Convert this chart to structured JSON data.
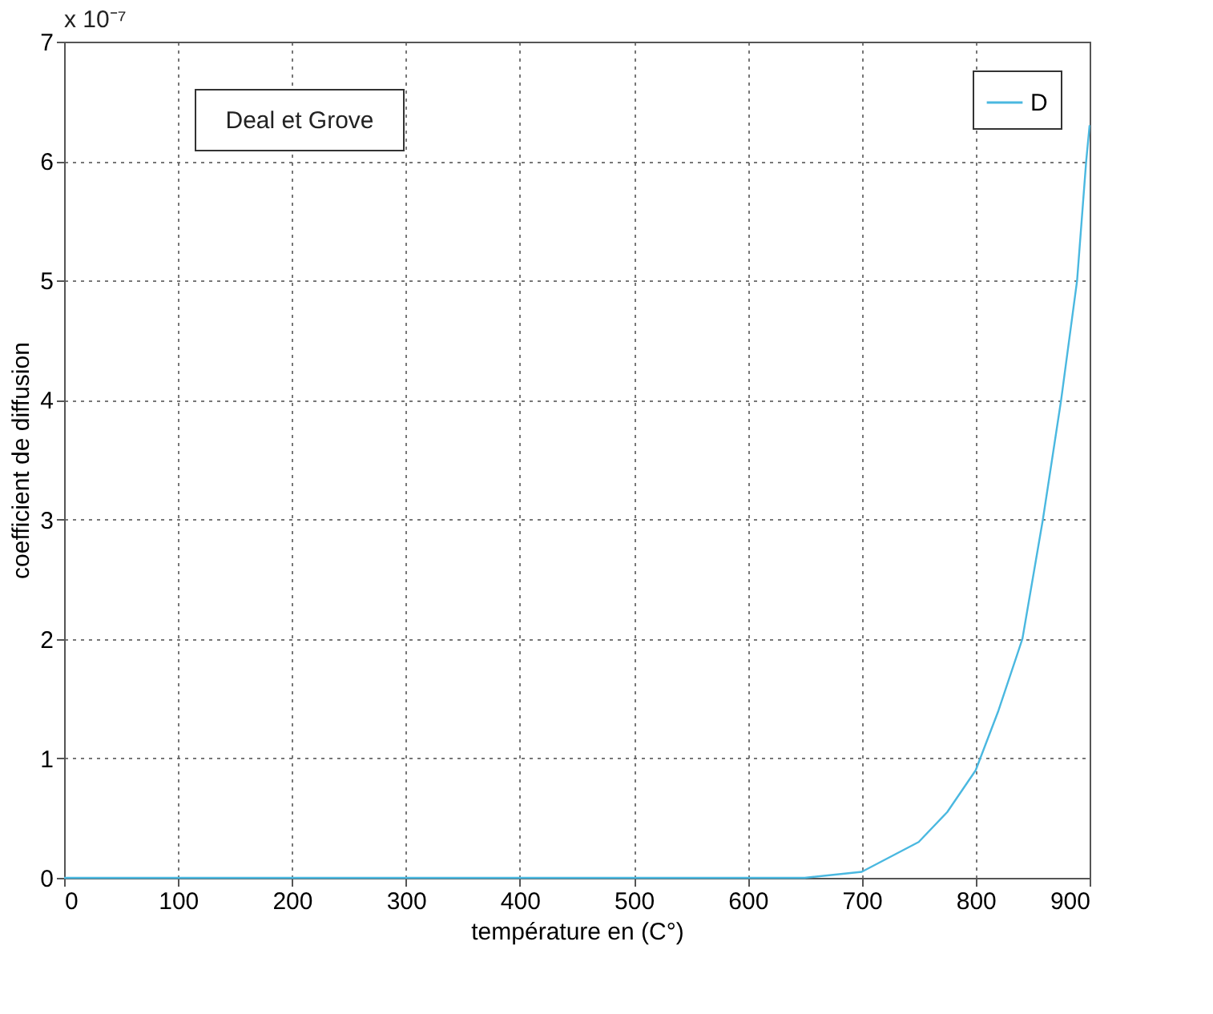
{
  "chart_data": {
    "type": "line",
    "xlabel": "température en (C°)",
    "ylabel": "coefficient de diffusion",
    "annotations": [
      "x 10⁻⁷",
      "Deal et Grove"
    ],
    "x": [
      0,
      300,
      600,
      650,
      700,
      750,
      775,
      800,
      820,
      841,
      859,
      875,
      889,
      897,
      900
    ],
    "series": [
      {
        "name": "D",
        "color": "#4ab8e0",
        "values": [
          0,
          0,
          0,
          0,
          0.05,
          0.3,
          0.55,
          0.9,
          1.4,
          2,
          3,
          4,
          5,
          6,
          6.3
        ]
      }
    ],
    "xlim": [
      0,
      900
    ],
    "xticks": [
      0,
      100,
      200,
      300,
      400,
      500,
      600,
      700,
      800,
      900
    ],
    "ylim": [
      0,
      7
    ],
    "yticks": [
      0,
      1,
      2,
      3,
      4,
      5,
      6,
      7
    ],
    "grid": true,
    "legend": "top right",
    "line_style": "solid",
    "marker": "none"
  }
}
